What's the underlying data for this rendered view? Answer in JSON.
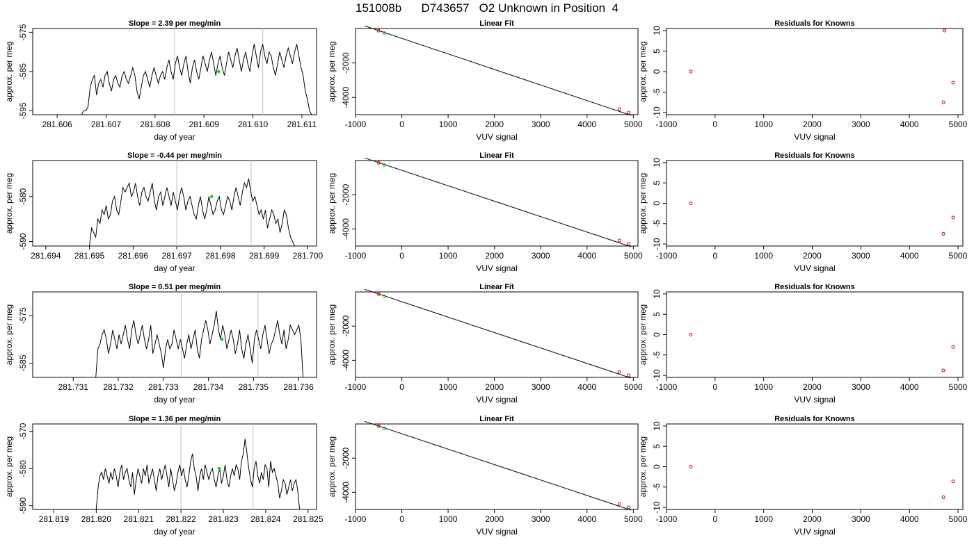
{
  "page_title": "151008b      D743657   O2 Unknown in Position  4",
  "chart_data": [
    {
      "row": 0,
      "type": "line",
      "title": "Slope =  2.39  per meg/min",
      "xlabel": "day of year",
      "ylabel": "approx. per meg",
      "xticks": [
        "281.606",
        "281.607",
        "281.608",
        "281.609",
        "281.610",
        "281.611"
      ],
      "yticks": [
        "-575",
        "-585",
        "-595"
      ],
      "xlim": [
        281.6055,
        281.6113
      ],
      "ylim": [
        -596,
        -574
      ],
      "xstart": 281.6065,
      "xend": 281.6112,
      "vlines": [
        281.6084,
        281.6102
      ],
      "point": [
        281.6093,
        -585
      ],
      "y": [
        -596,
        -595,
        -595,
        -594,
        -589,
        -587,
        -586,
        -591,
        -588,
        -587,
        -589,
        -586,
        -585,
        -588,
        -590,
        -587,
        -586,
        -588,
        -589,
        -586,
        -585,
        -587,
        -588,
        -586,
        -584,
        -586,
        -590,
        -592,
        -589,
        -586,
        -585,
        -587,
        -589,
        -586,
        -584,
        -586,
        -588,
        -586,
        -585,
        -587,
        -584,
        -582,
        -585,
        -587,
        -583,
        -581,
        -584,
        -586,
        -583,
        -581,
        -585,
        -588,
        -584,
        -582,
        -585,
        -587,
        -584,
        -581,
        -583,
        -585,
        -582,
        -580,
        -583,
        -586,
        -583,
        -581,
        -584,
        -586,
        -583,
        -580,
        -582,
        -584,
        -581,
        -579,
        -582,
        -585,
        -582,
        -580,
        -583,
        -585,
        -581,
        -578,
        -581,
        -584,
        -580,
        -578,
        -581,
        -583,
        -580,
        -581,
        -584,
        -586,
        -583,
        -580,
        -582,
        -584,
        -581,
        -579,
        -581,
        -583,
        -580,
        -578,
        -581,
        -584,
        -586,
        -590,
        -592,
        -595,
        -596
      ]
    },
    {
      "row": 0,
      "type": "line-fit",
      "title": "Linear Fit",
      "xlabel": "VUV signal",
      "ylabel": "approx. per meg",
      "xticks": [
        "-1000",
        "0",
        "1000",
        "2000",
        "3000",
        "4000",
        "5000"
      ],
      "yticks": [
        "-2000",
        "-4000"
      ],
      "xlim": [
        -1000,
        5100
      ],
      "ylim": [
        -5000,
        0
      ],
      "fit": [
        [
          -800,
          150
        ],
        [
          4950,
          -5040
        ]
      ],
      "knowns": [
        [
          -500,
          -130
        ],
        [
          4700,
          -4680
        ],
        [
          4900,
          -4880
        ]
      ],
      "unknown": [
        [
          -380,
          -260
        ]
      ]
    },
    {
      "row": 0,
      "type": "scatter",
      "title": "Residuals for Knowns",
      "xlabel": "VUV signal",
      "ylabel": "approx. per meg",
      "xticks": [
        "-1000",
        "0",
        "1000",
        "2000",
        "3000",
        "4000",
        "5000"
      ],
      "yticks": [
        "10",
        "5",
        "0",
        "-5",
        "-10"
      ],
      "xlim": [
        -1000,
        5100
      ],
      "ylim": [
        -10.5,
        10.5
      ],
      "points": [
        [
          -500,
          0
        ],
        [
          4720,
          10
        ],
        [
          4700,
          -7.5
        ],
        [
          4900,
          -2.7
        ]
      ]
    },
    {
      "row": 1,
      "type": "line",
      "title": "Slope =  -0.44  per meg/min",
      "xlabel": "day of year",
      "ylabel": "approx. per meg",
      "xticks": [
        "281.694",
        "281.695",
        "281.696",
        "281.697",
        "281.698",
        "281.699",
        "281.700"
      ],
      "yticks": [
        "-580",
        "-590"
      ],
      "xlim": [
        281.6937,
        281.7002
      ],
      "ylim": [
        -591,
        -572
      ],
      "xstart": 281.695,
      "xend": 281.6997,
      "vlines": [
        281.697,
        281.6987
      ],
      "point": [
        281.6978,
        -580
      ],
      "y": [
        -591,
        -587,
        -588,
        -589,
        -585,
        -586,
        -583,
        -584,
        -582,
        -585,
        -584,
        -581,
        -580,
        -583,
        -584,
        -581,
        -578,
        -579,
        -578,
        -577,
        -580,
        -579,
        -577,
        -580,
        -582,
        -579,
        -578,
        -580,
        -581,
        -579,
        -577,
        -581,
        -583,
        -580,
        -579,
        -582,
        -580,
        -578,
        -580,
        -582,
        -579,
        -581,
        -583,
        -580,
        -578,
        -580,
        -583,
        -581,
        -580,
        -582,
        -584,
        -585,
        -582,
        -580,
        -583,
        -585,
        -583,
        -580,
        -582,
        -584,
        -583,
        -581,
        -580,
        -583,
        -584,
        -582,
        -580,
        -581,
        -583,
        -580,
        -578,
        -580,
        -582,
        -579,
        -577,
        -578,
        -576,
        -579,
        -581,
        -580,
        -582,
        -584,
        -583,
        -585,
        -583,
        -587,
        -585,
        -583,
        -584,
        -586,
        -585,
        -588,
        -586,
        -583,
        -584,
        -587,
        -589,
        -590,
        -591
      ]
    },
    {
      "row": 1,
      "type": "line-fit",
      "title": "Linear Fit",
      "xlabel": "VUV signal",
      "ylabel": "approx. per meg",
      "xticks": [
        "-1000",
        "0",
        "1000",
        "2000",
        "3000",
        "4000",
        "5000"
      ],
      "yticks": [
        "-2000",
        "-4000"
      ],
      "xlim": [
        -1000,
        5100
      ],
      "ylim": [
        -5000,
        0
      ],
      "fit": [
        [
          -800,
          150
        ],
        [
          4950,
          -5040
        ]
      ],
      "knowns": [
        [
          -500,
          -130
        ],
        [
          4700,
          -4680
        ],
        [
          4900,
          -4880
        ]
      ],
      "unknown": [
        [
          -380,
          -260
        ]
      ]
    },
    {
      "row": 1,
      "type": "scatter",
      "title": "Residuals for Knowns",
      "xlabel": "VUV signal",
      "ylabel": "approx. per meg",
      "xticks": [
        "-1000",
        "0",
        "1000",
        "2000",
        "3000",
        "4000",
        "5000"
      ],
      "yticks": [
        "10",
        "5",
        "0",
        "-5",
        "-10"
      ],
      "xlim": [
        -1000,
        5100
      ],
      "ylim": [
        -10.5,
        10.5
      ],
      "points": [
        [
          -500,
          0
        ],
        [
          4700,
          -7.5
        ],
        [
          4900,
          -3.5
        ]
      ]
    },
    {
      "row": 2,
      "type": "line",
      "title": "Slope =  0.51  per meg/min",
      "xlabel": "day of year",
      "ylabel": "approx. per meg",
      "xticks": [
        "281.731",
        "281.732",
        "281.733",
        "281.734",
        "281.735",
        "281.736"
      ],
      "yticks": [
        "-575",
        "-585"
      ],
      "xlim": [
        281.7301,
        281.7364
      ],
      "ylim": [
        -588,
        -570
      ],
      "xstart": 281.7315,
      "xend": 281.7361,
      "vlines": [
        281.7334,
        281.7351
      ],
      "point": [
        281.7343,
        -580
      ],
      "y": [
        -588,
        -582,
        -581,
        -579,
        -578,
        -580,
        -583,
        -581,
        -578,
        -580,
        -582,
        -579,
        -581,
        -579,
        -577,
        -580,
        -582,
        -578,
        -576,
        -579,
        -581,
        -579,
        -577,
        -580,
        -582,
        -580,
        -577,
        -583,
        -581,
        -579,
        -581,
        -583,
        -586,
        -582,
        -580,
        -582,
        -581,
        -578,
        -580,
        -582,
        -580,
        -582,
        -584,
        -581,
        -579,
        -582,
        -580,
        -578,
        -582,
        -584,
        -580,
        -578,
        -576,
        -578,
        -581,
        -579,
        -577,
        -574,
        -578,
        -580,
        -577,
        -579,
        -582,
        -580,
        -578,
        -580,
        -583,
        -581,
        -578,
        -582,
        -584,
        -581,
        -579,
        -582,
        -585,
        -580,
        -578,
        -580,
        -582,
        -579,
        -577,
        -580,
        -583,
        -581,
        -580,
        -578,
        -576,
        -579,
        -581,
        -578,
        -582,
        -580,
        -577,
        -578,
        -579,
        -578,
        -577,
        -580,
        -588
      ]
    },
    {
      "row": 2,
      "type": "line-fit",
      "title": "Linear Fit",
      "xlabel": "VUV signal",
      "ylabel": "approx. per meg",
      "xticks": [
        "-1000",
        "0",
        "1000",
        "2000",
        "3000",
        "4000",
        "5000"
      ],
      "yticks": [
        "-2000",
        "-4000"
      ],
      "xlim": [
        -1000,
        5100
      ],
      "ylim": [
        -5000,
        0
      ],
      "fit": [
        [
          -800,
          150
        ],
        [
          4950,
          -5040
        ]
      ],
      "knowns": [
        [
          -500,
          -130
        ],
        [
          4700,
          -4680
        ],
        [
          4900,
          -4880
        ]
      ],
      "unknown": [
        [
          -380,
          -260
        ]
      ]
    },
    {
      "row": 2,
      "type": "scatter",
      "title": "Residuals for Knowns",
      "xlabel": "VUV signal",
      "ylabel": "approx. per meg",
      "xticks": [
        "-1000",
        "0",
        "1000",
        "2000",
        "3000",
        "4000",
        "5000"
      ],
      "yticks": [
        "10",
        "5",
        "0",
        "-5",
        "-10"
      ],
      "xlim": [
        -1000,
        5100
      ],
      "ylim": [
        -10.5,
        10.5
      ],
      "points": [
        [
          -500,
          0
        ],
        [
          4700,
          -8.8
        ],
        [
          4900,
          -3
        ]
      ]
    },
    {
      "row": 3,
      "type": "line",
      "title": "Slope =  1.36  per meg/min",
      "xlabel": "day of year",
      "ylabel": "approx. per meg",
      "xticks": [
        "281.819",
        "281.820",
        "281.821",
        "281.822",
        "281.823",
        "281.824",
        "281.825"
      ],
      "yticks": [
        "-570",
        "-580",
        "-590"
      ],
      "xlim": [
        281.8185,
        281.8252
      ],
      "ylim": [
        -591,
        -568
      ],
      "xstart": 281.82,
      "xend": 281.8248,
      "vlines": [
        281.822,
        281.8237
      ],
      "point": [
        281.8229,
        -580
      ],
      "y": [
        -591,
        -585,
        -582,
        -581,
        -583,
        -580,
        -582,
        -584,
        -581,
        -583,
        -580,
        -582,
        -585,
        -581,
        -579,
        -583,
        -581,
        -580,
        -583,
        -585,
        -581,
        -587,
        -583,
        -580,
        -582,
        -584,
        -580,
        -582,
        -579,
        -584,
        -582,
        -580,
        -583,
        -586,
        -582,
        -580,
        -583,
        -581,
        -579,
        -582,
        -585,
        -580,
        -583,
        -586,
        -584,
        -581,
        -579,
        -582,
        -580,
        -583,
        -585,
        -582,
        -578,
        -576,
        -580,
        -582,
        -586,
        -582,
        -580,
        -583,
        -579,
        -581,
        -583,
        -581,
        -580,
        -583,
        -585,
        -582,
        -580,
        -584,
        -582,
        -579,
        -583,
        -585,
        -582,
        -580,
        -582,
        -579,
        -580,
        -583,
        -578,
        -576,
        -572,
        -576,
        -580,
        -583,
        -585,
        -580,
        -578,
        -582,
        -584,
        -581,
        -583,
        -579,
        -580,
        -585,
        -578,
        -581,
        -580,
        -582,
        -584,
        -588,
        -586,
        -583,
        -584,
        -587,
        -585,
        -583,
        -586,
        -584,
        -583,
        -586,
        -591
      ]
    },
    {
      "row": 3,
      "type": "line-fit",
      "title": "Linear Fit",
      "xlabel": "VUV signal",
      "ylabel": "approx. per meg",
      "xticks": [
        "-1000",
        "0",
        "1000",
        "2000",
        "3000",
        "4000",
        "5000"
      ],
      "yticks": [
        "-2000",
        "-4000"
      ],
      "xlim": [
        -1000,
        5100
      ],
      "ylim": [
        -5000,
        0
      ],
      "fit": [
        [
          -800,
          150
        ],
        [
          4950,
          -5040
        ]
      ],
      "knowns": [
        [
          -500,
          -130
        ],
        [
          4700,
          -4680
        ],
        [
          4900,
          -4880
        ]
      ],
      "unknown": [
        [
          -380,
          -260
        ]
      ]
    },
    {
      "row": 3,
      "type": "scatter",
      "title": "Residuals for Knowns",
      "xlabel": "VUV signal",
      "ylabel": "approx. per meg",
      "xticks": [
        "-1000",
        "0",
        "1000",
        "2000",
        "3000",
        "4000",
        "5000"
      ],
      "yticks": [
        "10",
        "5",
        "0",
        "-5",
        "-10"
      ],
      "xlim": [
        -1000,
        5100
      ],
      "ylim": [
        -10.5,
        10.5
      ],
      "points": [
        [
          -500,
          0
        ],
        [
          4700,
          -7.5
        ],
        [
          4900,
          -3.6
        ]
      ]
    }
  ]
}
